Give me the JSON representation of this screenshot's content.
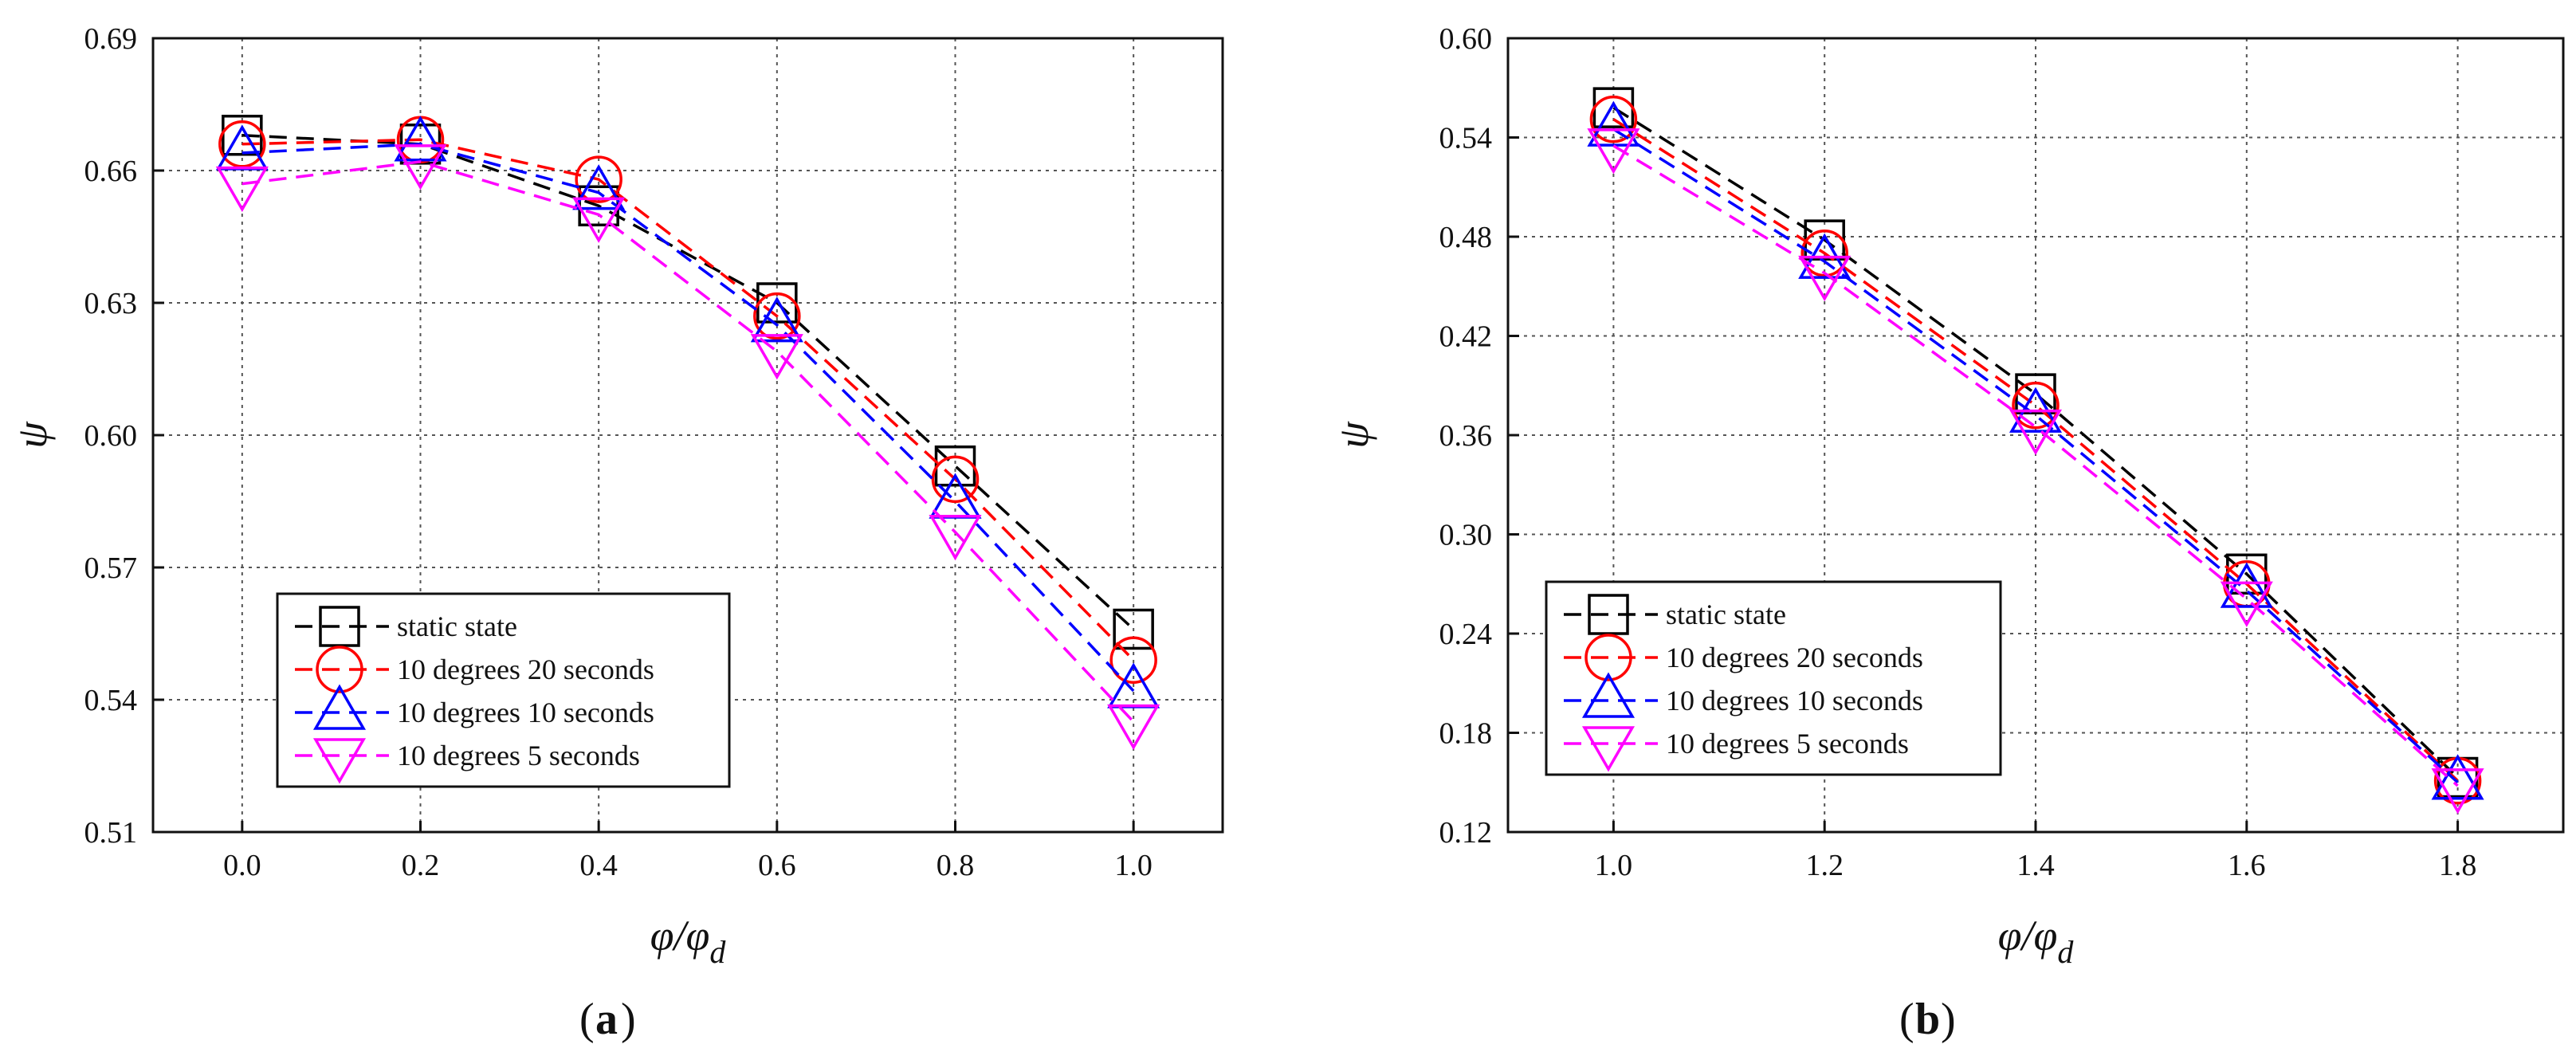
{
  "figure": {
    "panels": [
      {
        "caption_letter": "a"
      },
      {
        "caption_letter": "b"
      }
    ]
  },
  "chart_data": [
    {
      "type": "line",
      "title": "",
      "xlabel": "φ/φ_d",
      "ylabel": "ψ",
      "xlim": [
        -0.1,
        1.1
      ],
      "ylim": [
        0.51,
        0.69
      ],
      "xticks": [
        0.0,
        0.2,
        0.4,
        0.6,
        0.8,
        1.0
      ],
      "yticks": [
        0.51,
        0.54,
        0.57,
        0.6,
        0.63,
        0.66,
        0.69
      ],
      "xtick_labels": [
        "0.0",
        "0.2",
        "0.4",
        "0.6",
        "0.8",
        "1.0"
      ],
      "ytick_labels": [
        "0.51",
        "0.54",
        "0.57",
        "0.60",
        "0.63",
        "0.66",
        "0.69"
      ],
      "grid": true,
      "legend_position": "bottom-left",
      "x": [
        0.0,
        0.2,
        0.4,
        0.6,
        0.8,
        1.0
      ],
      "series": [
        {
          "name": "static state",
          "color": "#000000",
          "marker": "square",
          "values": [
            0.668,
            0.666,
            0.652,
            0.63,
            0.593,
            0.556
          ]
        },
        {
          "name": "10 degrees 20 seconds",
          "color": "#ff0000",
          "marker": "circle",
          "values": [
            0.666,
            0.667,
            0.658,
            0.627,
            0.59,
            0.549
          ]
        },
        {
          "name": "10 degrees 10 seconds",
          "color": "#0000ff",
          "marker": "triangle-up",
          "values": [
            0.664,
            0.666,
            0.655,
            0.625,
            0.585,
            0.542
          ]
        },
        {
          "name": "10 degrees 5 seconds",
          "color": "#ff00ff",
          "marker": "triangle-down",
          "values": [
            0.657,
            0.662,
            0.65,
            0.619,
            0.578,
            0.535
          ]
        }
      ]
    },
    {
      "type": "line",
      "title": "",
      "xlabel": "φ/φ_d",
      "ylabel": "ψ",
      "xlim": [
        0.9,
        1.9
      ],
      "ylim": [
        0.12,
        0.6
      ],
      "xticks": [
        1.0,
        1.2,
        1.4,
        1.6,
        1.8
      ],
      "yticks": [
        0.12,
        0.18,
        0.24,
        0.3,
        0.36,
        0.42,
        0.48,
        0.54,
        0.6
      ],
      "xtick_labels": [
        "1.0",
        "1.2",
        "1.4",
        "1.6",
        "1.8"
      ],
      "ytick_labels": [
        "0.12",
        "0.18",
        "0.24",
        "0.30",
        "0.36",
        "0.42",
        "0.48",
        "0.54",
        "0.60"
      ],
      "grid": true,
      "legend_position": "bottom-left",
      "x": [
        1.0,
        1.2,
        1.4,
        1.6,
        1.8
      ],
      "series": [
        {
          "name": "static state",
          "color": "#000000",
          "marker": "square",
          "values": [
            0.558,
            0.478,
            0.385,
            0.276,
            0.153
          ]
        },
        {
          "name": "10 degrees 20 seconds",
          "color": "#ff0000",
          "marker": "circle",
          "values": [
            0.551,
            0.47,
            0.378,
            0.27,
            0.151
          ]
        },
        {
          "name": "10 degrees 10 seconds",
          "color": "#0000ff",
          "marker": "triangle-up",
          "values": [
            0.545,
            0.465,
            0.372,
            0.266,
            0.15
          ]
        },
        {
          "name": "10 degrees 5 seconds",
          "color": "#ff00ff",
          "marker": "triangle-down",
          "values": [
            0.535,
            0.458,
            0.365,
            0.261,
            0.148
          ]
        }
      ]
    }
  ]
}
